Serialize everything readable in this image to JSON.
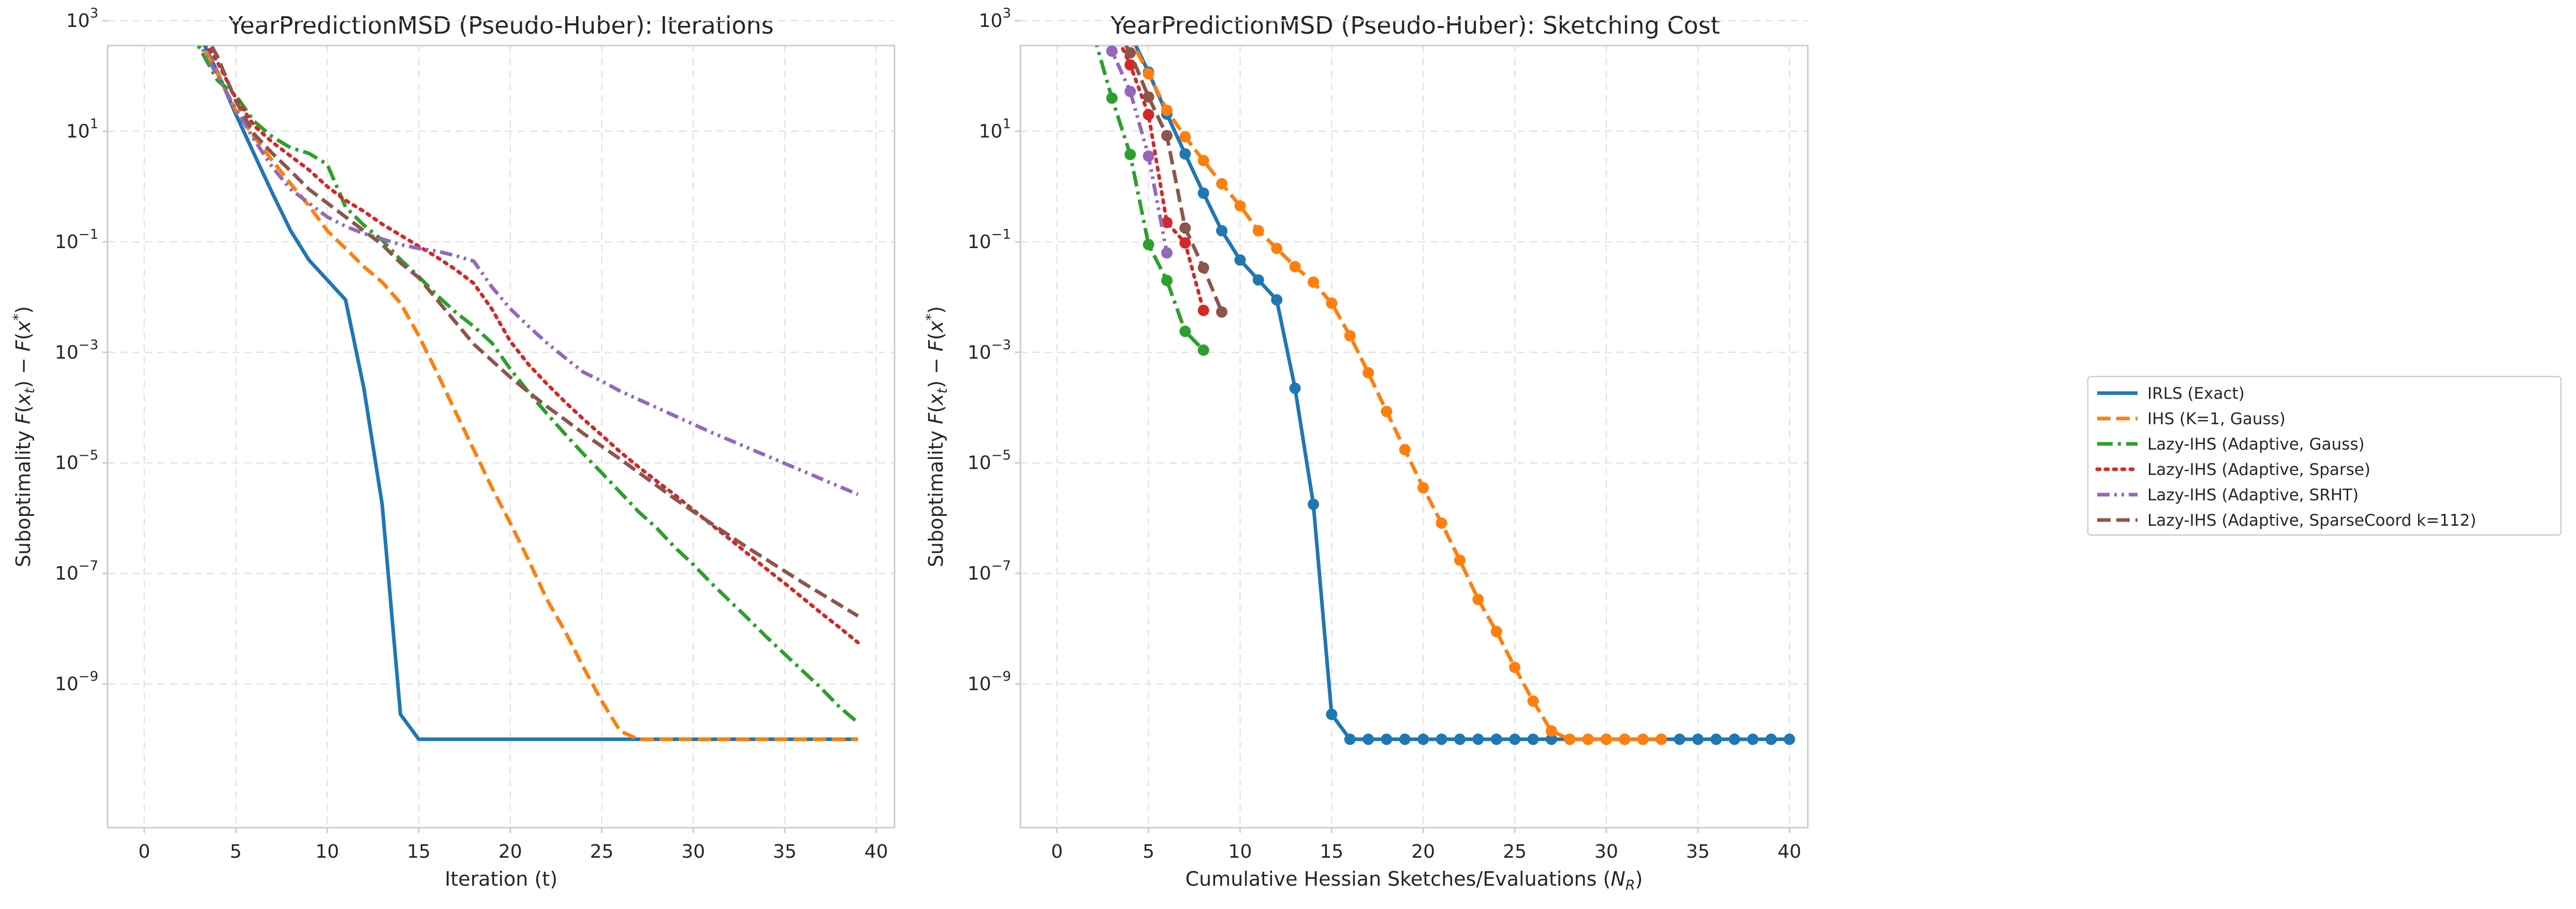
{
  "chart_data": [
    {
      "type": "line",
      "title": "YearPredictionMSD (Pseudo-Huber): Iterations",
      "xlabel": "Iteration (t)",
      "ylabel": "Suboptimality F(x_t) − F(x*)",
      "xlim": [
        -2,
        41
      ],
      "ylim_log10": [
        -11.6,
        2.55
      ],
      "yscale": "log",
      "grid": true,
      "xticks": [
        0,
        5,
        10,
        15,
        20,
        25,
        30,
        35,
        40
      ],
      "yticks_exp": [
        3,
        1,
        -1,
        -3,
        -5,
        -7,
        -9
      ],
      "series": [
        {
          "name": "IRLS (Exact)",
          "color": "#1f77b4",
          "dash": "solid",
          "markers": false,
          "x": [
            0,
            1,
            2,
            3,
            4,
            5,
            6,
            7,
            8,
            9,
            10,
            11,
            12,
            13,
            14,
            15,
            16,
            17,
            18,
            19,
            20,
            21,
            22,
            23,
            24,
            25,
            26,
            27,
            28,
            29,
            30,
            31,
            32,
            33,
            34,
            35,
            36,
            37,
            38,
            39
          ],
          "log10_y": [
            4.2,
            3.88,
            3.33,
            2.76,
            2.07,
            1.31,
            0.59,
            -0.12,
            -0.8,
            -1.33,
            -1.69,
            -2.05,
            -3.65,
            -5.75,
            -9.55,
            -10.0,
            -10.0,
            -10.0,
            -10.0,
            -10.0,
            -10.0,
            -10.0,
            -10.0,
            -10.0,
            -10.0,
            -10.0,
            -10.0,
            -10.0,
            -10.0,
            -10.0,
            -10.0,
            -10.0,
            -10.0,
            -10.0,
            -10.0,
            -10.0,
            -10.0,
            -10.0,
            -10.0,
            -10.0
          ]
        },
        {
          "name": "IHS (K=1, Gauss)",
          "color": "#ff7f0e",
          "dash": "dashed",
          "markers": false,
          "x": [
            0,
            1,
            2,
            3,
            4,
            5,
            6,
            7,
            8,
            9,
            10,
            11,
            12,
            13,
            14,
            15,
            16,
            17,
            18,
            19,
            20,
            21,
            22,
            23,
            24,
            25,
            26,
            27,
            28,
            29,
            30,
            31,
            32,
            33,
            34,
            35,
            36,
            37,
            38,
            39
          ],
          "log10_y": [
            4.2,
            3.8,
            3.27,
            2.68,
            2.04,
            1.38,
            0.9,
            0.47,
            0.05,
            -0.35,
            -0.8,
            -1.12,
            -1.45,
            -1.73,
            -2.11,
            -2.7,
            -3.37,
            -4.07,
            -4.76,
            -5.45,
            -6.09,
            -6.76,
            -7.47,
            -8.05,
            -8.7,
            -9.31,
            -9.85,
            -10.0,
            -10.0,
            -10.0,
            -10.0,
            -10.0,
            -10.0,
            -10.0,
            -10.0,
            -10.0,
            -10.0,
            -10.0,
            -10.0,
            -10.0
          ]
        },
        {
          "name": "Lazy-IHS (Adaptive, Gauss)",
          "color": "#2ca02c",
          "dash": "dashdot",
          "markers": false,
          "x": [
            0,
            1,
            2,
            3,
            4,
            5,
            6,
            7,
            8,
            9,
            10,
            11,
            12,
            13,
            14,
            15,
            16,
            17,
            18,
            19,
            20,
            21,
            22,
            23,
            24,
            25,
            26,
            27,
            28,
            29,
            30,
            31,
            32,
            33,
            34,
            35,
            36,
            37,
            38,
            39
          ],
          "log10_y": [
            4.2,
            3.85,
            3.0,
            2.52,
            1.92,
            1.65,
            1.18,
            0.9,
            0.7,
            0.6,
            0.4,
            -0.37,
            -0.7,
            -0.97,
            -1.32,
            -1.63,
            -1.97,
            -2.27,
            -2.53,
            -2.83,
            -3.3,
            -3.72,
            -4.11,
            -4.48,
            -4.84,
            -5.18,
            -5.53,
            -5.88,
            -6.18,
            -6.53,
            -6.84,
            -7.18,
            -7.5,
            -7.82,
            -8.15,
            -8.46,
            -8.77,
            -9.08,
            -9.42,
            -9.7
          ]
        },
        {
          "name": "Lazy-IHS (Adaptive, Sparse)",
          "color": "#d62728",
          "dash": "dotted",
          "markers": false,
          "x": [
            0,
            1,
            2,
            3,
            4,
            5,
            6,
            7,
            8,
            9,
            10,
            11,
            12,
            13,
            14,
            15,
            16,
            17,
            18,
            19,
            20,
            21,
            22,
            23,
            24,
            25,
            26,
            27,
            28,
            29,
            30,
            31,
            32,
            33,
            34,
            35,
            36,
            37,
            38,
            39
          ],
          "log10_y": [
            4.2,
            3.85,
            3.3,
            2.8,
            2.25,
            1.6,
            1.1,
            0.8,
            0.55,
            0.3,
            0.0,
            -0.25,
            -0.45,
            -0.68,
            -0.88,
            -1.08,
            -1.28,
            -1.5,
            -1.75,
            -2.22,
            -2.8,
            -3.22,
            -3.57,
            -3.9,
            -4.21,
            -4.5,
            -4.8,
            -5.07,
            -5.33,
            -5.58,
            -5.85,
            -6.12,
            -6.38,
            -6.65,
            -6.92,
            -7.18,
            -7.45,
            -7.72,
            -7.98,
            -8.25
          ]
        },
        {
          "name": "Lazy-IHS (Adaptive, SRHT)",
          "color": "#9467bd",
          "dash": "dashdotdot",
          "markers": false,
          "x": [
            0,
            1,
            2,
            3,
            4,
            5,
            6,
            7,
            8,
            9,
            10,
            11,
            12,
            13,
            14,
            15,
            16,
            17,
            18,
            19,
            20,
            21,
            22,
            23,
            24,
            25,
            26,
            27,
            28,
            29,
            30,
            31,
            32,
            33,
            34,
            35,
            36,
            37,
            38,
            39
          ],
          "log10_y": [
            4.2,
            3.8,
            3.2,
            2.6,
            2.0,
            1.4,
            0.85,
            0.35,
            -0.05,
            -0.3,
            -0.55,
            -0.72,
            -0.85,
            -0.95,
            -1.05,
            -1.12,
            -1.17,
            -1.25,
            -1.35,
            -1.82,
            -2.21,
            -2.53,
            -2.83,
            -3.1,
            -3.36,
            -3.52,
            -3.7,
            -3.85,
            -4.0,
            -4.15,
            -4.3,
            -4.45,
            -4.59,
            -4.73,
            -4.87,
            -5.01,
            -5.15,
            -5.29,
            -5.43,
            -5.57
          ]
        },
        {
          "name": "Lazy-IHS (Adaptive, SparseCoord k=112)",
          "color": "#8c564b",
          "dash": "dashed",
          "markers": false,
          "x": [
            0,
            1,
            2,
            3,
            4,
            5,
            6,
            7,
            8,
            9,
            10,
            11,
            12,
            13,
            14,
            15,
            16,
            17,
            18,
            19,
            20,
            21,
            22,
            23,
            24,
            25,
            26,
            27,
            28,
            29,
            30,
            31,
            32,
            33,
            34,
            35,
            36,
            37,
            38,
            39
          ],
          "log10_y": [
            4.2,
            3.9,
            3.45,
            2.95,
            2.35,
            1.55,
            0.95,
            0.6,
            0.28,
            -0.05,
            -0.3,
            -0.55,
            -0.8,
            -1.05,
            -1.38,
            -1.65,
            -2.05,
            -2.45,
            -2.85,
            -3.15,
            -3.45,
            -3.72,
            -3.98,
            -4.22,
            -4.47,
            -4.7,
            -4.93,
            -5.17,
            -5.41,
            -5.65,
            -5.88,
            -6.1,
            -6.32,
            -6.54,
            -6.75,
            -6.96,
            -7.17,
            -7.37,
            -7.57,
            -7.77
          ]
        }
      ]
    },
    {
      "type": "line",
      "title": "YearPredictionMSD (Pseudo-Huber): Sketching Cost",
      "xlabel": "Cumulative Hessian Sketches/Evaluations (N_R)",
      "ylabel": "Suboptimality F(x_t) − F(x*)",
      "xlim": [
        -2,
        41
      ],
      "ylim_log10": [
        -11.6,
        2.55
      ],
      "yscale": "log",
      "grid": true,
      "xticks": [
        0,
        5,
        10,
        15,
        20,
        25,
        30,
        35,
        40
      ],
      "yticks_exp": [
        3,
        1,
        -1,
        -3,
        -5,
        -7,
        -9
      ],
      "series": [
        {
          "name": "IRLS (Exact)",
          "color": "#1f77b4",
          "dash": "solid",
          "markers": true,
          "x": [
            1,
            2,
            3,
            4,
            5,
            6,
            7,
            8,
            9,
            10,
            11,
            12,
            13,
            14,
            15,
            16,
            17,
            18,
            19,
            20,
            21,
            22,
            23,
            24,
            25,
            26,
            27,
            28,
            29,
            30,
            31,
            32,
            33,
            34,
            35,
            36,
            37,
            38,
            39,
            40
          ],
          "log10_y": [
            4.2,
            3.88,
            3.33,
            2.76,
            2.07,
            1.31,
            0.59,
            -0.12,
            -0.8,
            -1.33,
            -1.69,
            -2.05,
            -3.65,
            -5.75,
            -9.55,
            -10.0,
            -10.0,
            -10.0,
            -10.0,
            -10.0,
            -10.0,
            -10.0,
            -10.0,
            -10.0,
            -10.0,
            -10.0,
            -10.0,
            -10.0,
            -10.0,
            -10.0,
            -10.0,
            -10.0,
            -10.0,
            -10.0,
            -10.0,
            -10.0,
            -10.0,
            -10.0,
            -10.0,
            -10.0
          ]
        },
        {
          "name": "IHS (K=1, Gauss)",
          "color": "#ff7f0e",
          "dash": "dashed",
          "markers": true,
          "x": [
            1,
            2,
            3,
            4,
            5,
            6,
            7,
            8,
            9,
            10,
            11,
            12,
            13,
            14,
            15,
            16,
            17,
            18,
            19,
            20,
            21,
            22,
            23,
            24,
            25,
            26,
            27,
            28,
            29,
            30,
            31,
            32,
            33
          ],
          "log10_y": [
            4.2,
            3.8,
            3.27,
            2.68,
            2.04,
            1.38,
            0.9,
            0.47,
            0.05,
            -0.35,
            -0.8,
            -1.12,
            -1.45,
            -1.73,
            -2.11,
            -2.7,
            -3.37,
            -4.07,
            -4.76,
            -5.45,
            -6.09,
            -6.76,
            -7.47,
            -8.05,
            -8.7,
            -9.31,
            -9.85,
            -10.0,
            -10.0,
            -10.0,
            -10.0,
            -10.0,
            -10.0
          ]
        },
        {
          "name": "Lazy-IHS (Adaptive, Gauss)",
          "color": "#2ca02c",
          "dash": "dashdot",
          "markers": true,
          "x": [
            0,
            1,
            2,
            3,
            4,
            5,
            6,
            7,
            8
          ],
          "log10_y": [
            4.2,
            3.8,
            2.75,
            1.6,
            0.58,
            -1.05,
            -1.7,
            -2.62,
            -2.96
          ]
        },
        {
          "name": "Lazy-IHS (Adaptive, Sparse)",
          "color": "#d62728",
          "dash": "dotted",
          "markers": true,
          "x": [
            0,
            1,
            2,
            3,
            4,
            5,
            6,
            7,
            8
          ],
          "log10_y": [
            4.2,
            3.85,
            3.3,
            2.92,
            2.2,
            1.3,
            -0.65,
            -1.02,
            -2.24
          ]
        },
        {
          "name": "Lazy-IHS (Adaptive, SRHT)",
          "color": "#9467bd",
          "dash": "dashdotdot",
          "markers": true,
          "x": [
            0,
            1,
            2,
            3,
            4,
            5,
            6
          ],
          "log10_y": [
            4.2,
            3.85,
            3.42,
            2.45,
            1.72,
            0.55,
            -1.2
          ]
        },
        {
          "name": "Lazy-IHS (Adaptive, SparseCoord k=112)",
          "color": "#8c564b",
          "dash": "dashed",
          "markers": true,
          "x": [
            0,
            1,
            2,
            3,
            4,
            5,
            6,
            7,
            8,
            9
          ],
          "log10_y": [
            4.2,
            3.9,
            3.5,
            2.98,
            2.42,
            1.62,
            0.92,
            -0.75,
            -1.47,
            -2.27
          ]
        }
      ]
    }
  ],
  "legend_placement": "right"
}
